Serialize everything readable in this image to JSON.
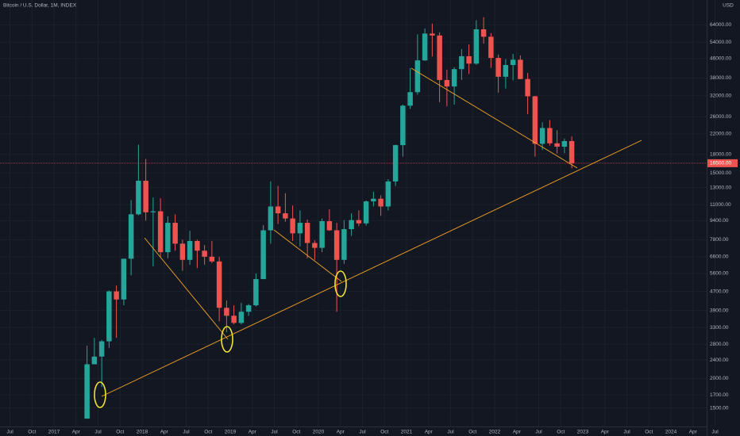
{
  "chart_data": {
    "type": "candlestick",
    "title": "Bitcoin / U.S. Dollar, 1M, INDEX",
    "y_axis_label": "USD",
    "log_scale": true,
    "grid": true,
    "up_color": "#26a69a",
    "down_color": "#ef5350",
    "x": [
      "2017-05",
      "2017-06",
      "2017-07",
      "2017-08",
      "2017-09",
      "2017-10",
      "2017-11",
      "2017-12",
      "2018-01",
      "2018-02",
      "2018-03",
      "2018-04",
      "2018-05",
      "2018-06",
      "2018-07",
      "2018-08",
      "2018-09",
      "2018-10",
      "2018-11",
      "2018-12",
      "2019-01",
      "2019-02",
      "2019-03",
      "2019-04",
      "2019-05",
      "2019-06",
      "2019-07",
      "2019-08",
      "2019-09",
      "2019-10",
      "2019-11",
      "2019-12",
      "2020-01",
      "2020-02",
      "2020-03",
      "2020-04",
      "2020-05",
      "2020-06",
      "2020-07",
      "2020-08",
      "2020-09",
      "2020-10",
      "2020-11",
      "2020-12",
      "2021-01",
      "2021-02",
      "2021-03",
      "2021-04",
      "2021-05",
      "2021-06",
      "2021-07",
      "2021-08",
      "2021-09",
      "2021-10",
      "2021-11",
      "2021-12",
      "2022-01",
      "2022-02",
      "2022-03",
      "2022-04",
      "2022-05",
      "2022-06",
      "2022-07",
      "2022-08",
      "2022-09",
      "2022-10",
      "2022-11"
    ],
    "open": [
      1350,
      2300,
      2480,
      2880,
      4700,
      4340,
      6470,
      10000,
      13900,
      10200,
      10300,
      6900,
      9200,
      7500,
      6400,
      7700,
      7000,
      6600,
      6300,
      4000,
      3700,
      3450,
      3850,
      4100,
      5300,
      8550,
      10800,
      10100,
      9600,
      8300,
      9200,
      7550,
      7200,
      9350,
      8550,
      6400,
      8650,
      9450,
      9150,
      11350,
      11650,
      10800,
      13800,
      19700,
      29000,
      33100,
      45200,
      58800,
      57700,
      37300,
      35000,
      41500,
      47100,
      43800,
      61300,
      57000,
      46300,
      38500,
      43200,
      45500,
      37650,
      31800,
      19950,
      23300,
      20050,
      19400,
      20500
    ],
    "high": [
      2760,
      2980,
      2920,
      4740,
      4980,
      6470,
      11500,
      19800,
      17200,
      11800,
      11700,
      9800,
      10000,
      7800,
      8500,
      7800,
      7400,
      7700,
      6600,
      4300,
      4100,
      4200,
      4150,
      5600,
      9000,
      13800,
      13200,
      12300,
      10900,
      10400,
      9500,
      7750,
      9600,
      10500,
      9200,
      9450,
      10100,
      10400,
      11450,
      12470,
      12050,
      14100,
      19800,
      29300,
      41950,
      58350,
      61800,
      64850,
      59500,
      41300,
      42300,
      50500,
      52900,
      67000,
      69000,
      59100,
      47900,
      45800,
      48200,
      47450,
      40000,
      31900,
      24650,
      25200,
      22800,
      21000,
      21450
    ],
    "low": [
      1350,
      2300,
      1840,
      2700,
      2980,
      4100,
      5500,
      9900,
      9400,
      6000,
      6600,
      6500,
      7000,
      5750,
      6100,
      5900,
      6100,
      6200,
      3500,
      3150,
      3400,
      3400,
      3700,
      4050,
      5300,
      7500,
      9100,
      9300,
      7700,
      7300,
      6500,
      6400,
      6900,
      8500,
      3850,
      6150,
      8100,
      8900,
      8950,
      10800,
      9850,
      10400,
      13200,
      17600,
      28100,
      32300,
      45000,
      47000,
      30000,
      28800,
      29300,
      37300,
      39600,
      43300,
      53300,
      42000,
      32950,
      34300,
      37200,
      37600,
      26700,
      17600,
      18800,
      19600,
      18150,
      18200,
      15700
    ],
    "close": [
      2300,
      2480,
      2880,
      4700,
      4340,
      6470,
      10000,
      13900,
      10200,
      10300,
      6900,
      9200,
      7500,
      6400,
      7700,
      7000,
      6600,
      6300,
      4000,
      3700,
      3450,
      3850,
      4100,
      5300,
      8550,
      10800,
      10100,
      9600,
      8300,
      9200,
      7550,
      7200,
      9350,
      8550,
      6400,
      8650,
      9450,
      9150,
      11350,
      11650,
      10800,
      13800,
      19700,
      29000,
      33100,
      45200,
      58800,
      57700,
      37300,
      35000,
      41500,
      47100,
      43800,
      61300,
      57000,
      46300,
      38500,
      43200,
      45500,
      37650,
      31800,
      19950,
      23300,
      20050,
      19400,
      20500,
      16500
    ],
    "price_line": {
      "value": 16500,
      "label": "16500.00"
    },
    "ylim": [
      1250,
      81700
    ],
    "yticks": [
      {
        "value": 64000,
        "label": "64000.00"
      },
      {
        "value": 54000,
        "label": "54000.00"
      },
      {
        "value": 46000,
        "label": "46000.00"
      },
      {
        "value": 38000,
        "label": "38000.00"
      },
      {
        "value": 32000,
        "label": "32000.00"
      },
      {
        "value": 26000,
        "label": "26000.00"
      },
      {
        "value": 22000,
        "label": "22000.00"
      },
      {
        "value": 18000,
        "label": "18000.00"
      },
      {
        "value": 15000,
        "label": "15000.00"
      },
      {
        "value": 13000,
        "label": "13000.00"
      },
      {
        "value": 11000,
        "label": "11000.00"
      },
      {
        "value": 9400,
        "label": "9400.00"
      },
      {
        "value": 7800,
        "label": "7800.00"
      },
      {
        "value": 6600,
        "label": "6600.00"
      },
      {
        "value": 5600,
        "label": "5600.00"
      },
      {
        "value": 4700,
        "label": "4700.00"
      },
      {
        "value": 3900,
        "label": "3900.00"
      },
      {
        "value": 3300,
        "label": "3300.00"
      },
      {
        "value": 2800,
        "label": "2800.00"
      },
      {
        "value": 2400,
        "label": "2400.00"
      },
      {
        "value": 2000,
        "label": "2000.00"
      },
      {
        "value": 1700,
        "label": "1700.00"
      },
      {
        "value": 1500,
        "label": "1500.00"
      }
    ],
    "xticks": [
      {
        "value": "2016-07",
        "label": "Jul"
      },
      {
        "value": "2016-10",
        "label": "Oct"
      },
      {
        "value": "2017-01",
        "label": "2017"
      },
      {
        "value": "2017-04",
        "label": "Apr"
      },
      {
        "value": "2017-07",
        "label": "Jul"
      },
      {
        "value": "2017-10",
        "label": "Oct"
      },
      {
        "value": "2018-01",
        "label": "2018"
      },
      {
        "value": "2018-04",
        "label": "Apr"
      },
      {
        "value": "2018-07",
        "label": "Jul"
      },
      {
        "value": "2018-10",
        "label": "Oct"
      },
      {
        "value": "2019-01",
        "label": "2019"
      },
      {
        "value": "2019-04",
        "label": "Apr"
      },
      {
        "value": "2019-07",
        "label": "Jul"
      },
      {
        "value": "2019-10",
        "label": "Oct"
      },
      {
        "value": "2020-01",
        "label": "2020"
      },
      {
        "value": "2020-04",
        "label": "Apr"
      },
      {
        "value": "2020-07",
        "label": "Jul"
      },
      {
        "value": "2020-10",
        "label": "Oct"
      },
      {
        "value": "2021-01",
        "label": "2021"
      },
      {
        "value": "2021-04",
        "label": "Apr"
      },
      {
        "value": "2021-07",
        "label": "Jul"
      },
      {
        "value": "2021-10",
        "label": "Oct"
      },
      {
        "value": "2022-01",
        "label": "2022"
      },
      {
        "value": "2022-04",
        "label": "Apr"
      },
      {
        "value": "2022-07",
        "label": "Jul"
      },
      {
        "value": "2022-10",
        "label": "Oct"
      },
      {
        "value": "2023-01",
        "label": "2023"
      },
      {
        "value": "2023-04",
        "label": "Apr"
      },
      {
        "value": "2023-07",
        "label": "Jul"
      },
      {
        "value": "2023-10",
        "label": "Oct"
      },
      {
        "value": "2024-01",
        "label": "2024"
      },
      {
        "value": "2024-04",
        "label": "Apr"
      },
      {
        "value": "2024-07",
        "label": "Jul"
      }
    ]
  }
}
